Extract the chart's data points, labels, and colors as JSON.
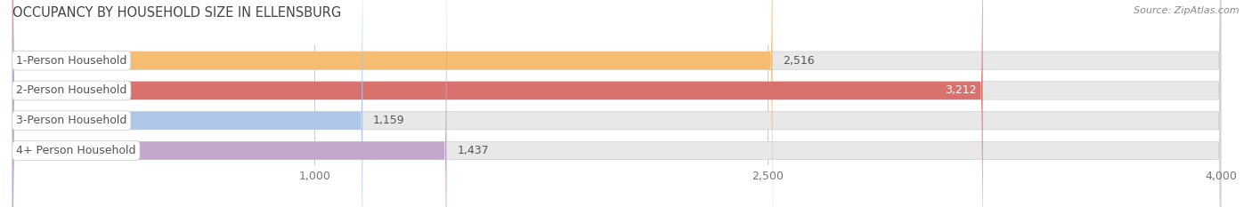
{
  "title": "OCCUPANCY BY HOUSEHOLD SIZE IN ELLENSBURG",
  "source": "Source: ZipAtlas.com",
  "categories": [
    "1-Person Household",
    "2-Person Household",
    "3-Person Household",
    "4+ Person Household"
  ],
  "values": [
    2516,
    3212,
    1159,
    1437
  ],
  "bar_colors": [
    "#f5bc72",
    "#d9726e",
    "#aec6e8",
    "#c3a8cc"
  ],
  "bar_bg_color": "#e8e8e8",
  "label_bg_color": "#ffffff",
  "background_color": "#ffffff",
  "xlim_min": 0,
  "xlim_max": 4000,
  "xticks": [
    1000,
    2500,
    4000
  ],
  "bar_height": 0.6,
  "title_fontsize": 10.5,
  "label_fontsize": 9,
  "value_fontsize": 9,
  "tick_fontsize": 9,
  "grid_color": "#cccccc",
  "value2_color": "#ffffff",
  "value_color": "#555555",
  "title_color": "#444444",
  "source_color": "#888888",
  "label_text_color": "#555555"
}
